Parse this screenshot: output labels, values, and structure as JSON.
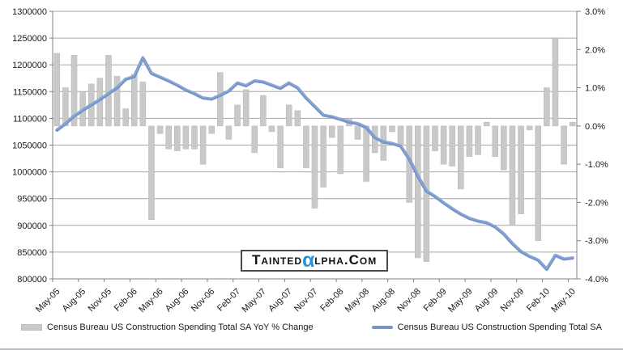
{
  "watermark": {
    "part1": "Tainted",
    "alpha": "α",
    "part2": "lpha.Com",
    "alpha_color": "#2196d3"
  },
  "legend": [
    {
      "label": "Census Bureau US Construction Spending Total SA YoY % Change",
      "type": "bar",
      "color": "#c9c9c9"
    },
    {
      "label": "Census Bureau US Construction Spending Total SA",
      "type": "line",
      "color": "#7595c9"
    }
  ],
  "chart_data": {
    "type": "combo-bar-line",
    "grid": true,
    "legend_position": "bottom",
    "categories": [
      "May-05",
      "Jun-05",
      "Jul-05",
      "Aug-05",
      "Sep-05",
      "Oct-05",
      "Nov-05",
      "Dec-05",
      "Jan-06",
      "Feb-06",
      "Mar-06",
      "Apr-06",
      "May-06",
      "Jun-06",
      "Jul-06",
      "Aug-06",
      "Sep-06",
      "Oct-06",
      "Nov-06",
      "Dec-06",
      "Jan-07",
      "Feb-07",
      "Mar-07",
      "Apr-07",
      "May-07",
      "Jun-07",
      "Jul-07",
      "Aug-07",
      "Sep-07",
      "Oct-07",
      "Nov-07",
      "Dec-07",
      "Jan-08",
      "Feb-08",
      "Mar-08",
      "Apr-08",
      "May-08",
      "Jun-08",
      "Jul-08",
      "Aug-08",
      "Sep-08",
      "Oct-08",
      "Nov-08",
      "Dec-08",
      "Jan-09",
      "Feb-09",
      "Mar-09",
      "Apr-09",
      "May-09",
      "Jun-09",
      "Jul-09",
      "Aug-09",
      "Sep-09",
      "Oct-09",
      "Nov-09",
      "Dec-09",
      "Jan-10",
      "Feb-10",
      "Mar-10",
      "Apr-10",
      "May-10"
    ],
    "x_tick_every": 3,
    "left_axis": {
      "min": 800000,
      "max": 1300000,
      "step": 50000,
      "labels": [
        "1300000",
        "1250000",
        "1200000",
        "1150000",
        "1100000",
        "1050000",
        "1000000",
        "950000",
        "900000",
        "850000",
        "800000"
      ]
    },
    "right_axis": {
      "min": -4,
      "max": 3,
      "step": 1,
      "labels": [
        "3.0%",
        "2.0%",
        "1.0%",
        "0.0%",
        "-1.0%",
        "-2.0%",
        "-3.0%",
        "-4.0%"
      ]
    },
    "series": [
      {
        "name": "Census Bureau US Construction Spending Total SA YoY % Change",
        "type": "bar",
        "axis": "right",
        "color": "#c9c9c9",
        "border_color": "#b5b5b5",
        "values": [
          1.9,
          1.0,
          1.85,
          0.9,
          1.1,
          1.25,
          1.85,
          1.3,
          0.45,
          1.35,
          1.15,
          -2.45,
          -0.2,
          -0.6,
          -0.65,
          -0.6,
          -0.6,
          -1.0,
          -0.2,
          1.4,
          -0.35,
          0.55,
          0.95,
          -0.7,
          0.8,
          -0.15,
          -1.1,
          0.55,
          0.4,
          -1.1,
          -2.15,
          -1.6,
          -0.3,
          -1.25,
          0.2,
          -0.35,
          -1.45,
          -0.7,
          -0.9,
          -0.15,
          -0.5,
          -2.0,
          -3.45,
          -3.55,
          -0.65,
          -1.0,
          -1.05,
          -1.65,
          -0.8,
          -0.75,
          0.1,
          -0.8,
          -1.15,
          -2.6,
          -2.3,
          -0.1,
          -3.0,
          1.0,
          2.3,
          -1.0,
          0.1
        ]
      },
      {
        "name": "Census Bureau US Construction Spending Total SA",
        "type": "line",
        "axis": "left",
        "color": "#7595c9",
        "values": [
          1078000,
          1090000,
          1104000,
          1115000,
          1125000,
          1135000,
          1146000,
          1157000,
          1173000,
          1178000,
          1213000,
          1184000,
          1177000,
          1170000,
          1162000,
          1153000,
          1146000,
          1138000,
          1136000,
          1143000,
          1151000,
          1166000,
          1161000,
          1170000,
          1168000,
          1162000,
          1156000,
          1166000,
          1157000,
          1138000,
          1122000,
          1106000,
          1103000,
          1098000,
          1093000,
          1090000,
          1083000,
          1064000,
          1056000,
          1053000,
          1048000,
          1024000,
          992000,
          964000,
          954000,
          942000,
          931000,
          921000,
          913000,
          908000,
          905000,
          897000,
          884000,
          866000,
          851000,
          842000,
          835000,
          818000,
          844000,
          837000,
          839000
        ]
      }
    ],
    "colors": {
      "gridline": "#a6a6a6",
      "axis_line": "#808080",
      "text": "#1a1a1a"
    }
  }
}
